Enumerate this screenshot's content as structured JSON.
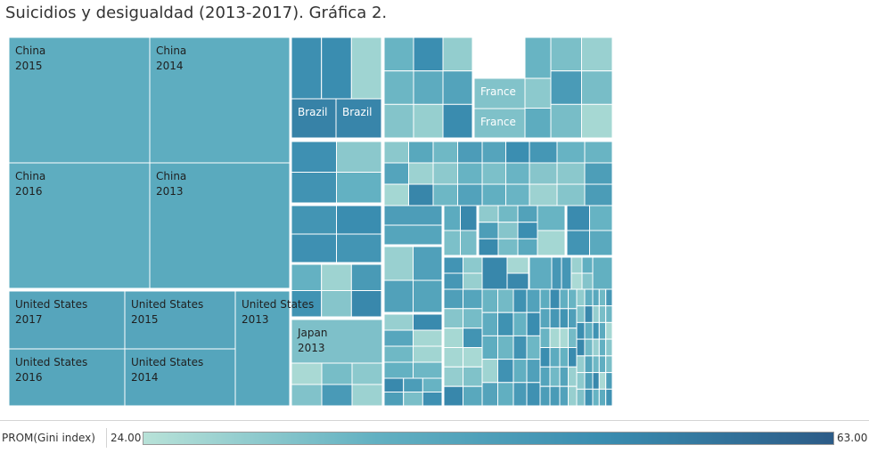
{
  "chart_data": {
    "type": "treemap",
    "title": "Suicidios y desigualdad (2013-2017). Gráfica 2.",
    "size_measure": "",
    "color_measure": "PROM(Gini index)",
    "color_range": [
      24.0,
      63.0
    ],
    "color_scale": [
      "#b8e2d8",
      "#63b1c2",
      "#3a8db0",
      "#2c5b87"
    ],
    "labeled_tiles": [
      {
        "country": "China",
        "year": "2015",
        "gini": 38.6
      },
      {
        "country": "China",
        "year": "2014",
        "gini": 38.6
      },
      {
        "country": "China",
        "year": "2016",
        "gini": 38.5
      },
      {
        "country": "China",
        "year": "2013",
        "gini": 39.7
      },
      {
        "country": "United States",
        "year": "2017",
        "gini": 41.2
      },
      {
        "country": "United States",
        "year": "2015",
        "gini": 41.2
      },
      {
        "country": "United States",
        "year": "2013",
        "gini": 40.7
      },
      {
        "country": "United States",
        "year": "2016",
        "gini": 41.1
      },
      {
        "country": "United States",
        "year": "2014",
        "gini": 41.5
      },
      {
        "country": "Brazil",
        "year": "",
        "gini": 52.9
      },
      {
        "country": "Brazil",
        "year": "",
        "gini": 52.0
      },
      {
        "country": "France",
        "year": "",
        "gini": 32.3
      },
      {
        "country": "France",
        "year": "",
        "gini": 32.7
      },
      {
        "country": "Japan",
        "year": "2013",
        "gini": 32.9
      }
    ]
  },
  "legend": {
    "field": "PROM(Gini index)",
    "min": "24.00",
    "max": "63.00"
  }
}
